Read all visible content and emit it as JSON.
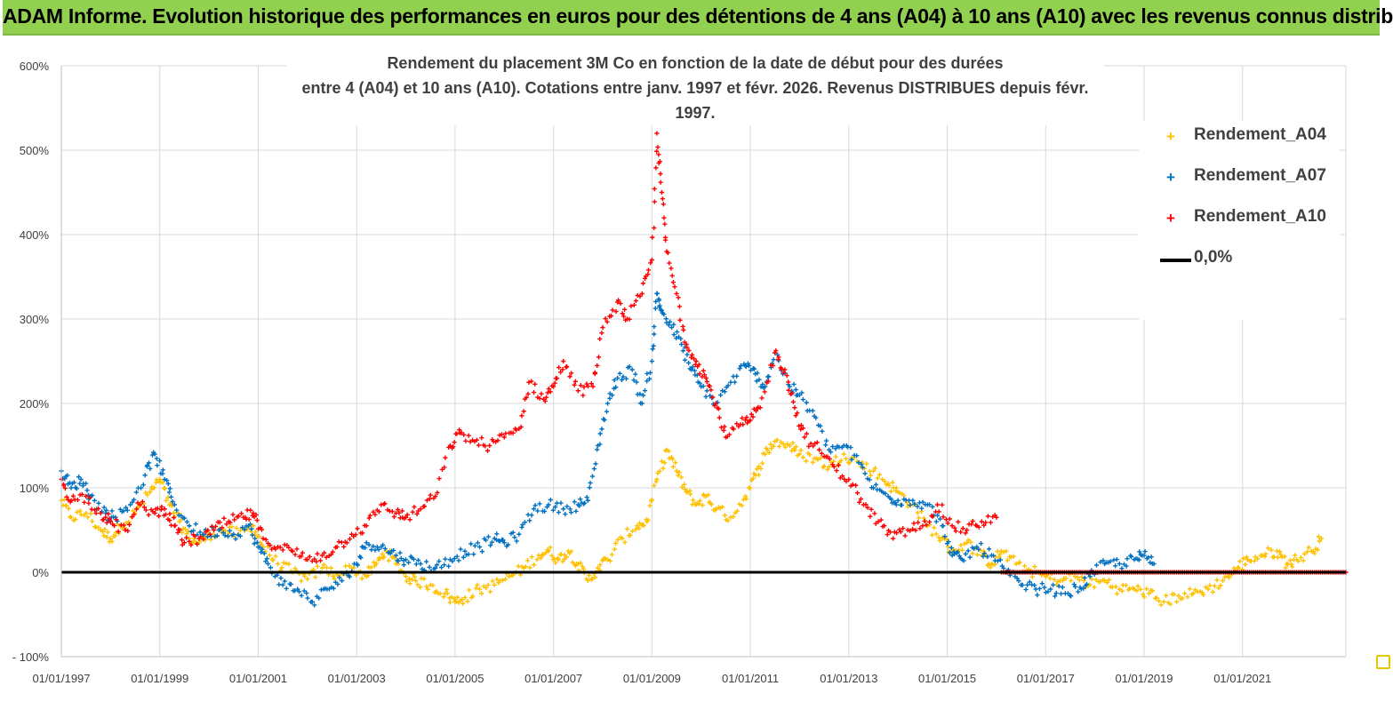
{
  "header": {
    "title": "ADAM Informe. Evolution historique des performances en euros pour des détentions de 4 ans (A04) à 10 ans (A10) avec les revenus connus distribués"
  },
  "chart_data": {
    "type": "scatter",
    "title_line1": "Rendement du placement 3M Co en fonction de la date de début pour des durées",
    "title_line2": "entre 4 (A04) et 10 ans (A10). Cotations entre janv. 1997 et févr. 2026. Revenus DISTRIBUES depuis févr. 1997.",
    "y_ticks": [
      "600%",
      "500%",
      "400%",
      "300%",
      "200%",
      "100%",
      "0%",
      "- 100%"
    ],
    "y_values": [
      600,
      500,
      400,
      300,
      200,
      100,
      0,
      -100
    ],
    "ylim": [
      -100,
      600
    ],
    "x_ticks": [
      "01/01/1997",
      "01/01/1999",
      "01/01/2001",
      "01/01/2003",
      "01/01/2005",
      "01/01/2007",
      "01/01/2009",
      "01/01/2011",
      "01/01/2013",
      "01/01/2015",
      "01/01/2017",
      "01/01/2019",
      "01/01/2021"
    ],
    "x_tick_years": [
      1997,
      1999,
      2001,
      2003,
      2005,
      2007,
      2009,
      2011,
      2013,
      2015,
      2017,
      2019,
      2021
    ],
    "xlim": [
      1997.0,
      2023.1
    ],
    "grid": true,
    "legend_position": "top-right",
    "series": [
      {
        "name": "Rendement_A04",
        "color": "#ffc000",
        "marker": "+",
        "points": [
          [
            1997.0,
            85
          ],
          [
            1997.2,
            65
          ],
          [
            1997.5,
            70
          ],
          [
            1997.8,
            50
          ],
          [
            1998.0,
            40
          ],
          [
            1998.2,
            55
          ],
          [
            1998.5,
            70
          ],
          [
            1998.8,
            95
          ],
          [
            1999.0,
            110
          ],
          [
            1999.2,
            80
          ],
          [
            1999.4,
            60
          ],
          [
            1999.6,
            40
          ],
          [
            1999.8,
            35
          ],
          [
            2000.0,
            45
          ],
          [
            2000.3,
            50
          ],
          [
            2000.6,
            45
          ],
          [
            2000.9,
            55
          ],
          [
            2001.1,
            30
          ],
          [
            2001.4,
            10
          ],
          [
            2001.7,
            0
          ],
          [
            2002.0,
            -8
          ],
          [
            2002.3,
            5
          ],
          [
            2002.6,
            -3
          ],
          [
            2002.9,
            5
          ],
          [
            2003.2,
            -5
          ],
          [
            2003.4,
            10
          ],
          [
            2003.6,
            25
          ],
          [
            2003.8,
            10
          ],
          [
            2004.0,
            -5
          ],
          [
            2004.2,
            -10
          ],
          [
            2004.5,
            -15
          ],
          [
            2004.8,
            -25
          ],
          [
            2005.0,
            -35
          ],
          [
            2005.2,
            -30
          ],
          [
            2005.5,
            -20
          ],
          [
            2005.8,
            -15
          ],
          [
            2006.1,
            -5
          ],
          [
            2006.4,
            5
          ],
          [
            2006.7,
            20
          ],
          [
            2006.9,
            25
          ],
          [
            2007.1,
            15
          ],
          [
            2007.3,
            25
          ],
          [
            2007.5,
            10
          ],
          [
            2007.7,
            -10
          ],
          [
            2007.9,
            5
          ],
          [
            2008.1,
            15
          ],
          [
            2008.4,
            40
          ],
          [
            2008.7,
            55
          ],
          [
            2008.9,
            60
          ],
          [
            2009.1,
            110
          ],
          [
            2009.3,
            145
          ],
          [
            2009.5,
            120
          ],
          [
            2009.7,
            95
          ],
          [
            2009.9,
            80
          ],
          [
            2010.1,
            90
          ],
          [
            2010.3,
            75
          ],
          [
            2010.6,
            65
          ],
          [
            2010.9,
            90
          ],
          [
            2011.1,
            115
          ],
          [
            2011.3,
            140
          ],
          [
            2011.5,
            155
          ],
          [
            2011.8,
            150
          ],
          [
            2012.0,
            140
          ],
          [
            2012.3,
            135
          ],
          [
            2012.6,
            125
          ],
          [
            2012.9,
            140
          ],
          [
            2013.2,
            130
          ],
          [
            2013.5,
            120
          ],
          [
            2013.8,
            105
          ],
          [
            2014.0,
            95
          ],
          [
            2014.3,
            80
          ],
          [
            2014.6,
            55
          ],
          [
            2014.9,
            40
          ],
          [
            2015.1,
            25
          ],
          [
            2015.4,
            35
          ],
          [
            2015.7,
            20
          ],
          [
            2015.9,
            10
          ],
          [
            2016.1,
            25
          ],
          [
            2016.4,
            10
          ],
          [
            2016.7,
            2
          ],
          [
            2017.0,
            -5
          ],
          [
            2017.3,
            -10
          ],
          [
            2017.6,
            -5
          ],
          [
            2017.9,
            -15
          ],
          [
            2018.2,
            -10
          ],
          [
            2018.5,
            -20
          ],
          [
            2018.8,
            -20
          ],
          [
            2019.1,
            -25
          ],
          [
            2019.4,
            -35
          ],
          [
            2019.7,
            -28
          ],
          [
            2020.0,
            -25
          ],
          [
            2020.3,
            -20
          ],
          [
            2020.6,
            -10
          ],
          [
            2020.9,
            5
          ],
          [
            2021.1,
            15
          ],
          [
            2021.4,
            20
          ],
          [
            2021.7,
            25
          ],
          [
            2021.9,
            10
          ],
          [
            2022.1,
            15
          ],
          [
            2022.4,
            25
          ],
          [
            2022.6,
            40
          ]
        ]
      },
      {
        "name": "Rendement_A07",
        "color": "#0070c0",
        "marker": "+",
        "points": [
          [
            1997.0,
            120
          ],
          [
            1997.2,
            100
          ],
          [
            1997.4,
            110
          ],
          [
            1997.6,
            90
          ],
          [
            1997.9,
            70
          ],
          [
            1998.1,
            65
          ],
          [
            1998.4,
            80
          ],
          [
            1998.7,
            115
          ],
          [
            1998.9,
            140
          ],
          [
            1999.1,
            110
          ],
          [
            1999.3,
            80
          ],
          [
            1999.6,
            55
          ],
          [
            1999.9,
            45
          ],
          [
            2000.2,
            50
          ],
          [
            2000.5,
            45
          ],
          [
            2000.8,
            55
          ],
          [
            2001.0,
            30
          ],
          [
            2001.2,
            10
          ],
          [
            2001.5,
            -15
          ],
          [
            2001.8,
            -20
          ],
          [
            2002.1,
            -35
          ],
          [
            2002.4,
            -20
          ],
          [
            2002.7,
            -10
          ],
          [
            2003.0,
            10
          ],
          [
            2003.2,
            35
          ],
          [
            2003.5,
            30
          ],
          [
            2003.8,
            20
          ],
          [
            2004.0,
            15
          ],
          [
            2004.3,
            10
          ],
          [
            2004.6,
            5
          ],
          [
            2004.9,
            15
          ],
          [
            2005.2,
            25
          ],
          [
            2005.5,
            30
          ],
          [
            2005.8,
            40
          ],
          [
            2006.0,
            35
          ],
          [
            2006.3,
            45
          ],
          [
            2006.6,
            75
          ],
          [
            2006.9,
            80
          ],
          [
            2007.2,
            75
          ],
          [
            2007.5,
            80
          ],
          [
            2007.7,
            85
          ],
          [
            2007.9,
            150
          ],
          [
            2008.1,
            200
          ],
          [
            2008.3,
            230
          ],
          [
            2008.6,
            240
          ],
          [
            2008.8,
            200
          ],
          [
            2009.0,
            250
          ],
          [
            2009.1,
            330
          ],
          [
            2009.2,
            310
          ],
          [
            2009.4,
            290
          ],
          [
            2009.6,
            270
          ],
          [
            2009.8,
            240
          ],
          [
            2010.0,
            220
          ],
          [
            2010.3,
            200
          ],
          [
            2010.6,
            225
          ],
          [
            2010.9,
            245
          ],
          [
            2011.1,
            235
          ],
          [
            2011.3,
            220
          ],
          [
            2011.5,
            260
          ],
          [
            2011.8,
            220
          ],
          [
            2012.0,
            210
          ],
          [
            2012.3,
            185
          ],
          [
            2012.6,
            145
          ],
          [
            2012.9,
            150
          ],
          [
            2013.2,
            130
          ],
          [
            2013.5,
            100
          ],
          [
            2013.8,
            90
          ],
          [
            2014.0,
            85
          ],
          [
            2014.3,
            85
          ],
          [
            2014.6,
            80
          ],
          [
            2014.9,
            55
          ],
          [
            2015.1,
            20
          ],
          [
            2015.3,
            15
          ],
          [
            2015.6,
            30
          ],
          [
            2015.9,
            20
          ],
          [
            2016.2,
            0
          ],
          [
            2016.5,
            -15
          ],
          [
            2016.8,
            -20
          ],
          [
            2017.1,
            -20
          ],
          [
            2017.4,
            -25
          ],
          [
            2017.7,
            -18
          ],
          [
            2017.9,
            -5
          ],
          [
            2018.2,
            10
          ],
          [
            2018.5,
            10
          ],
          [
            2018.8,
            15
          ],
          [
            2019.0,
            20
          ],
          [
            2019.2,
            10
          ]
        ]
      },
      {
        "name": "Rendement_A10",
        "color": "#ff0000",
        "marker": "+",
        "points": [
          [
            1997.0,
            110
          ],
          [
            1997.2,
            85
          ],
          [
            1997.5,
            90
          ],
          [
            1997.8,
            70
          ],
          [
            1998.0,
            60
          ],
          [
            1998.3,
            50
          ],
          [
            1998.6,
            80
          ],
          [
            1998.9,
            70
          ],
          [
            1999.1,
            75
          ],
          [
            1999.3,
            55
          ],
          [
            1999.5,
            35
          ],
          [
            1999.8,
            40
          ],
          [
            2000.1,
            50
          ],
          [
            2000.4,
            60
          ],
          [
            2000.7,
            65
          ],
          [
            2000.9,
            70
          ],
          [
            2001.1,
            40
          ],
          [
            2001.4,
            30
          ],
          [
            2001.7,
            25
          ],
          [
            2002.0,
            15
          ],
          [
            2002.3,
            20
          ],
          [
            2002.6,
            30
          ],
          [
            2002.9,
            45
          ],
          [
            2003.2,
            55
          ],
          [
            2003.5,
            80
          ],
          [
            2003.8,
            70
          ],
          [
            2004.0,
            65
          ],
          [
            2004.3,
            75
          ],
          [
            2004.6,
            90
          ],
          [
            2004.9,
            150
          ],
          [
            2005.1,
            165
          ],
          [
            2005.4,
            155
          ],
          [
            2005.7,
            150
          ],
          [
            2006.0,
            160
          ],
          [
            2006.3,
            170
          ],
          [
            2006.5,
            225
          ],
          [
            2006.8,
            205
          ],
          [
            2007.0,
            220
          ],
          [
            2007.2,
            250
          ],
          [
            2007.5,
            215
          ],
          [
            2007.8,
            220
          ],
          [
            2008.0,
            290
          ],
          [
            2008.3,
            320
          ],
          [
            2008.5,
            300
          ],
          [
            2008.8,
            330
          ],
          [
            2009.0,
            370
          ],
          [
            2009.1,
            520
          ],
          [
            2009.2,
            450
          ],
          [
            2009.3,
            380
          ],
          [
            2009.5,
            330
          ],
          [
            2009.7,
            270
          ],
          [
            2009.9,
            250
          ],
          [
            2010.1,
            230
          ],
          [
            2010.3,
            200
          ],
          [
            2010.5,
            160
          ],
          [
            2010.8,
            175
          ],
          [
            2011.0,
            180
          ],
          [
            2011.2,
            195
          ],
          [
            2011.5,
            260
          ],
          [
            2011.7,
            240
          ],
          [
            2011.9,
            195
          ],
          [
            2012.1,
            160
          ],
          [
            2012.4,
            145
          ],
          [
            2012.7,
            125
          ],
          [
            2013.0,
            110
          ],
          [
            2013.3,
            80
          ],
          [
            2013.6,
            60
          ],
          [
            2013.9,
            40
          ],
          [
            2014.2,
            50
          ],
          [
            2014.5,
            55
          ],
          [
            2014.8,
            80
          ],
          [
            2015.1,
            55
          ],
          [
            2015.4,
            50
          ],
          [
            2015.7,
            60
          ],
          [
            2016.0,
            65
          ]
        ]
      }
    ],
    "zero_line": {
      "name": "0,0%",
      "color": "#000000",
      "value": 0
    },
    "a10_zero_start": 2016.1
  }
}
